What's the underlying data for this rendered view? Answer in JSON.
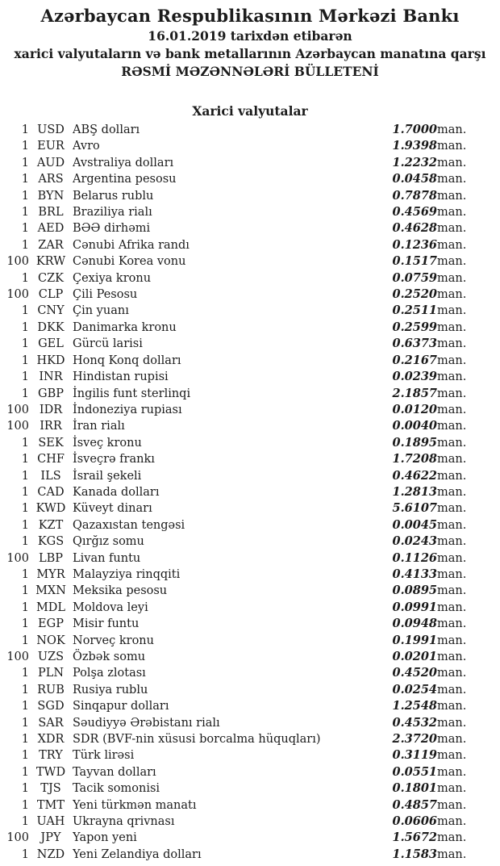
{
  "colors": {
    "text": "#1c1c1c",
    "background": "#ffffff"
  },
  "header": {
    "bank_name": "Azərbaycan Respublikasının Mərkəzi Bankı",
    "date_line": "16.01.2019 tarixdən etibarən",
    "scope_line": "xarici valyutaların və bank metallarının Azərbaycan manatına qarşı",
    "bulletin_line": "RƏSMİ MƏZƏNNƏLƏRİ BÜLLETENİ"
  },
  "section": {
    "title": "Xarici valyutalar"
  },
  "table": {
    "unit_label": "man.",
    "rows": [
      {
        "qty": "1",
        "code": "USD",
        "name": "ABŞ dolları",
        "rate": "1.7000"
      },
      {
        "qty": "1",
        "code": "EUR",
        "name": "Avro",
        "rate": "1.9398"
      },
      {
        "qty": "1",
        "code": "AUD",
        "name": "Avstraliya dolları",
        "rate": "1.2232"
      },
      {
        "qty": "1",
        "code": "ARS",
        "name": "Argentina pesosu",
        "rate": "0.0458"
      },
      {
        "qty": "1",
        "code": "BYN",
        "name": "Belarus rublu",
        "rate": "0.7878"
      },
      {
        "qty": "1",
        "code": "BRL",
        "name": "Braziliya rialı",
        "rate": "0.4569"
      },
      {
        "qty": "1",
        "code": "AED",
        "name": "BƏƏ dirhəmi",
        "rate": "0.4628"
      },
      {
        "qty": "1",
        "code": "ZAR",
        "name": "Cənubi Afrika randı",
        "rate": "0.1236"
      },
      {
        "qty": "100",
        "code": "KRW",
        "name": "Cənubi Korea vonu",
        "rate": "0.1517"
      },
      {
        "qty": "1",
        "code": "CZK",
        "name": "Çexiya kronu",
        "rate": "0.0759"
      },
      {
        "qty": "100",
        "code": "CLP",
        "name": "Çili Pesosu",
        "rate": "0.2520"
      },
      {
        "qty": "1",
        "code": "CNY",
        "name": "Çin yuanı",
        "rate": "0.2511"
      },
      {
        "qty": "1",
        "code": "DKK",
        "name": "Danimarka kronu",
        "rate": "0.2599"
      },
      {
        "qty": "1",
        "code": "GEL",
        "name": "Gürcü larisi",
        "rate": "0.6373"
      },
      {
        "qty": "1",
        "code": "HKD",
        "name": "Honq Konq dolları",
        "rate": "0.2167"
      },
      {
        "qty": "1",
        "code": "INR",
        "name": "Hindistan rupisi",
        "rate": "0.0239"
      },
      {
        "qty": "1",
        "code": "GBP",
        "name": "İngilis funt sterlinqi",
        "rate": "2.1857"
      },
      {
        "qty": "100",
        "code": "IDR",
        "name": "İndoneziya rupiası",
        "rate": "0.0120"
      },
      {
        "qty": "100",
        "code": "IRR",
        "name": "İran rialı",
        "rate": "0.0040"
      },
      {
        "qty": "1",
        "code": "SEK",
        "name": "İsveç kronu",
        "rate": "0.1895"
      },
      {
        "qty": "1",
        "code": "CHF",
        "name": "İsveçrə frankı",
        "rate": "1.7208"
      },
      {
        "qty": "1",
        "code": "ILS",
        "name": "İsrail şekeli",
        "rate": "0.4622"
      },
      {
        "qty": "1",
        "code": "CAD",
        "name": "Kanada dolları",
        "rate": "1.2813"
      },
      {
        "qty": "1",
        "code": "KWD",
        "name": "Küveyt dinarı",
        "rate": "5.6107"
      },
      {
        "qty": "1",
        "code": "KZT",
        "name": "Qazaxıstan tengəsi",
        "rate": "0.0045"
      },
      {
        "qty": "1",
        "code": "KGS",
        "name": "Qırğız somu",
        "rate": "0.0243"
      },
      {
        "qty": "100",
        "code": "LBP",
        "name": "Livan funtu",
        "rate": "0.1126"
      },
      {
        "qty": "1",
        "code": "MYR",
        "name": "Malayziya rinqqiti",
        "rate": "0.4133"
      },
      {
        "qty": "1",
        "code": "MXN",
        "name": "Meksika pesosu",
        "rate": "0.0895"
      },
      {
        "qty": "1",
        "code": "MDL",
        "name": "Moldova leyi",
        "rate": "0.0991"
      },
      {
        "qty": "1",
        "code": "EGP",
        "name": "Misir funtu",
        "rate": "0.0948"
      },
      {
        "qty": "1",
        "code": "NOK",
        "name": "Norveç kronu",
        "rate": "0.1991"
      },
      {
        "qty": "100",
        "code": "UZS",
        "name": "Özbək somu",
        "rate": "0.0201"
      },
      {
        "qty": "1",
        "code": "PLN",
        "name": "Polşa zlotası",
        "rate": "0.4520"
      },
      {
        "qty": "1",
        "code": "RUB",
        "name": "Rusiya rublu",
        "rate": "0.0254"
      },
      {
        "qty": "1",
        "code": "SGD",
        "name": "Sinqapur dolları",
        "rate": "1.2548"
      },
      {
        "qty": "1",
        "code": "SAR",
        "name": "Səudiyyə Ərəbistanı rialı",
        "rate": "0.4532"
      },
      {
        "qty": "1",
        "code": "XDR",
        "name": "SDR (BVF-nin xüsusi borcalma hüquqları)",
        "rate": "2.3720"
      },
      {
        "qty": "1",
        "code": "TRY",
        "name": "Türk lirəsi",
        "rate": "0.3119"
      },
      {
        "qty": "1",
        "code": "TWD",
        "name": "Tayvan dolları",
        "rate": "0.0551"
      },
      {
        "qty": "1",
        "code": "TJS",
        "name": "Tacik somonisi",
        "rate": "0.1801"
      },
      {
        "qty": "1",
        "code": "TMT",
        "name": "Yeni türkmən manatı",
        "rate": "0.4857"
      },
      {
        "qty": "1",
        "code": "UAH",
        "name": "Ukrayna qrivnası",
        "rate": "0.0606"
      },
      {
        "qty": "100",
        "code": "JPY",
        "name": "Yapon yeni",
        "rate": "1.5672"
      },
      {
        "qty": "1",
        "code": "NZD",
        "name": "Yeni Zelandiya dolları",
        "rate": "1.1583"
      }
    ]
  }
}
